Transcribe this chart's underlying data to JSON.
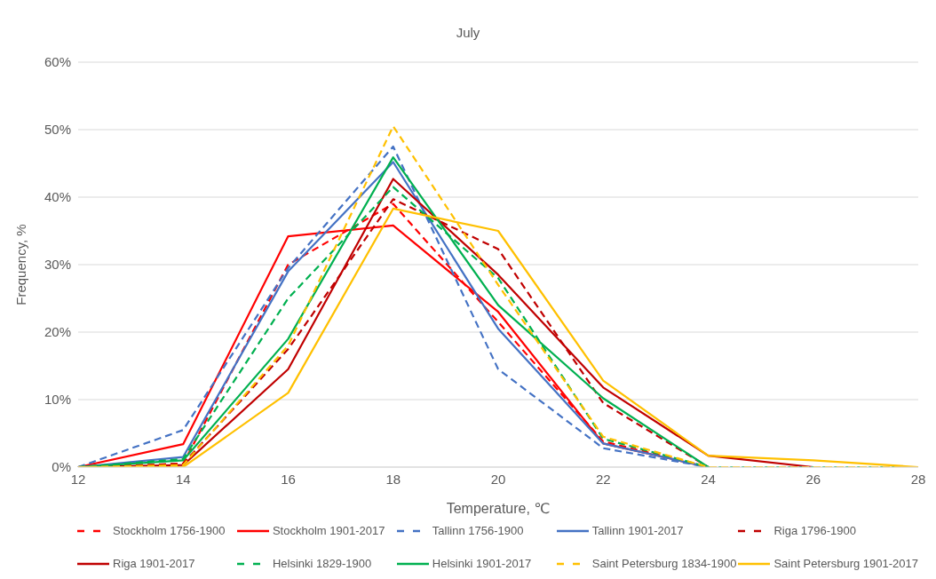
{
  "chart_data": {
    "type": "line",
    "title": "July",
    "xlabel": "Temperature, ℃",
    "ylabel": "Frequency, %",
    "categories": [
      "12",
      "14",
      "16",
      "18",
      "20",
      "22",
      "24",
      "26",
      "28"
    ],
    "ylim": [
      0,
      60
    ],
    "yticks": [
      {
        "value": 0,
        "label": "0%"
      },
      {
        "value": 10,
        "label": "10%"
      },
      {
        "value": 20,
        "label": "20%"
      },
      {
        "value": 30,
        "label": "30%"
      },
      {
        "value": 40,
        "label": "40%"
      },
      {
        "value": 50,
        "label": "50%"
      },
      {
        "value": 60,
        "label": "60%"
      }
    ],
    "grid": "y",
    "legend": "bottom",
    "marker": "none",
    "series": [
      {
        "name": "Stockholm 1756-1900",
        "color": "#ff0000",
        "line_style": "dashed",
        "values": [
          0,
          0.5,
          30,
          39,
          21.5,
          3.8,
          0,
          null,
          null
        ]
      },
      {
        "name": "Stockholm 1901-2017",
        "color": "#ff0000",
        "line_style": "solid",
        "values": [
          0,
          3.4,
          34.2,
          35.8,
          23,
          3.5,
          0,
          null,
          null
        ]
      },
      {
        "name": "Tallinn 1756-1900",
        "color": "#4472c4",
        "line_style": "dashed",
        "values": [
          0,
          5.5,
          29.5,
          47.5,
          14.5,
          2.8,
          0,
          null,
          null
        ]
      },
      {
        "name": "Tallinn 1901-2017",
        "color": "#4472c4",
        "line_style": "solid",
        "values": [
          0,
          1.5,
          29,
          45.2,
          20.5,
          3.5,
          0,
          null,
          null
        ]
      },
      {
        "name": "Riga 1796-1900",
        "color": "#c00000",
        "line_style": "dashed",
        "values": [
          0,
          0.5,
          17.5,
          39.7,
          32.3,
          9.5,
          0,
          null,
          null
        ]
      },
      {
        "name": "Riga 1901-2017",
        "color": "#c00000",
        "line_style": "solid",
        "values": [
          0,
          0.3,
          14.5,
          42.7,
          28.5,
          11.8,
          1.7,
          0,
          null
        ]
      },
      {
        "name": "Helsinki 1829-1900",
        "color": "#00b050",
        "line_style": "dashed",
        "values": [
          0,
          1.2,
          25,
          41.5,
          28,
          4.2,
          0,
          0,
          0
        ]
      },
      {
        "name": "Helsinki 1901-2017",
        "color": "#00b050",
        "line_style": "solid",
        "values": [
          0,
          1,
          19,
          45.9,
          24,
          10.2,
          0,
          null,
          null
        ]
      },
      {
        "name": "Saint Petersburg 1834-1900",
        "color": "#ffc000",
        "line_style": "dashed",
        "values": [
          0,
          0.3,
          18,
          50.5,
          27,
          4.5,
          0,
          0,
          0
        ]
      },
      {
        "name": "Saint Petersburg 1901-2017",
        "color": "#ffc000",
        "line_style": "solid",
        "values": [
          0,
          0,
          11,
          38.3,
          35,
          12.8,
          1.7,
          1,
          0
        ]
      }
    ]
  }
}
